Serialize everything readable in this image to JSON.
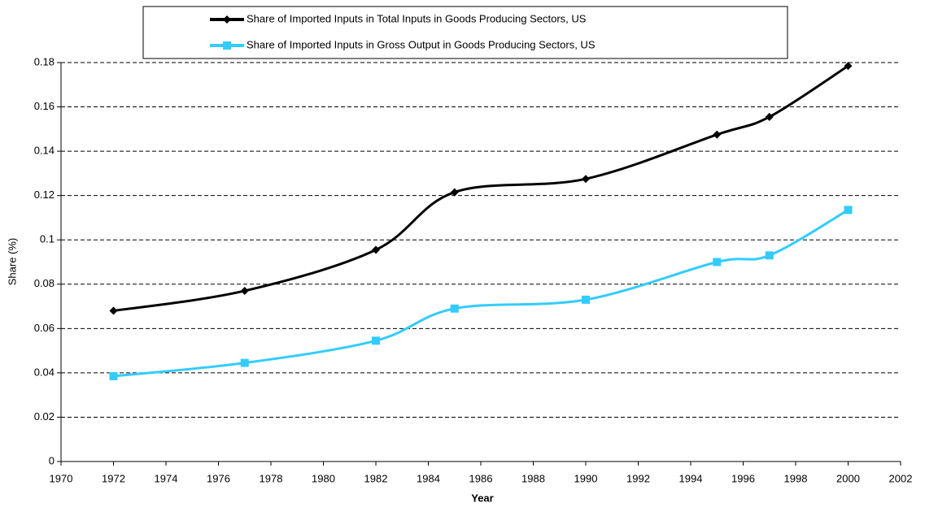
{
  "chart_data": {
    "type": "line",
    "x_label": "Year",
    "y_label": "Share (%)",
    "x": [
      1972,
      1977,
      1982,
      1985,
      1990,
      1995,
      1997,
      2000
    ],
    "series": [
      {
        "name": "Share of Imported Inputs in Total Inputs in Goods Producing Sectors, US",
        "color": "#000000",
        "marker": "diamond",
        "values": [
          0.068,
          0.077,
          0.0955,
          0.1215,
          0.1275,
          0.1475,
          0.1555,
          0.1785
        ]
      },
      {
        "name": "Share of Imported Inputs in Gross Output in Goods Producing Sectors, US",
        "color": "#33ccff",
        "marker": "square",
        "values": [
          0.0385,
          0.0445,
          0.0545,
          0.069,
          0.073,
          0.09,
          0.093,
          0.1135
        ]
      }
    ],
    "xlim": [
      1970,
      2002
    ],
    "xticks": [
      1970,
      1972,
      1974,
      1976,
      1978,
      1980,
      1982,
      1984,
      1986,
      1988,
      1990,
      1992,
      1994,
      1996,
      1998,
      2000,
      2002
    ],
    "ylim": [
      0,
      0.18
    ],
    "yticks": [
      0,
      0.02,
      0.04,
      0.06,
      0.08,
      0.1,
      0.12,
      0.14,
      0.16,
      0.18
    ],
    "grid": true,
    "legend": "top"
  }
}
